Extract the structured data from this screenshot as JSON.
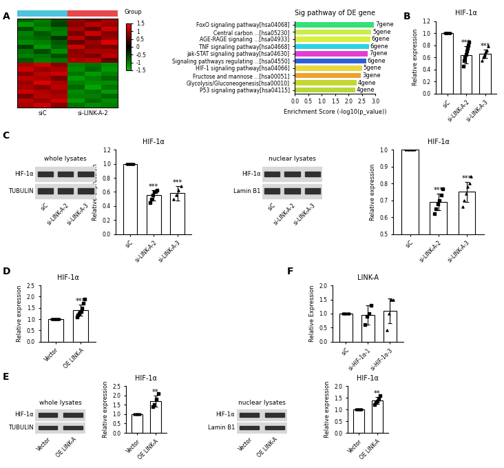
{
  "panel_labels": [
    "A",
    "B",
    "C",
    "D",
    "E",
    "F"
  ],
  "blots": [
    {
      "title": "whole lysates",
      "rows": [
        "HIF-1α",
        "TUBULIN"
      ],
      "lanes": [
        "siC",
        "si-LINK-A-2",
        "si-LINK-A-3"
      ]
    },
    {
      "title": "nuclear lysates",
      "rows": [
        "HIF-1α",
        "Lamin B1"
      ],
      "lanes": [
        "siC",
        "si-LINK-A-2",
        "si-LINK-A-3"
      ]
    },
    {
      "title": "whole lysates",
      "rows": [
        "HIF-1α",
        "TUBULIN"
      ],
      "lanes": [
        "Vector",
        "OE LINK-A"
      ]
    },
    {
      "title": "nuclear lysates",
      "rows": [
        "HIF-1α",
        "Lamin B1"
      ],
      "lanes": [
        "Vector",
        "OE LINK-A"
      ]
    }
  ],
  "chart_data": [
    {
      "type": "heatmap",
      "tick_labels": false,
      "group_title": "Group",
      "groups": [
        {
          "name": "siC",
          "color": "#4dc3dc",
          "columns": 3
        },
        {
          "name": "si-LINK-A-2",
          "color": "#e8484a",
          "columns": 3
        }
      ],
      "cells": [
        [
          -0.8,
          -1.0,
          -0.6,
          0.9,
          0.7,
          1.0
        ],
        [
          -1.2,
          -0.9,
          -0.5,
          0.8,
          1.1,
          0.9
        ],
        [
          -0.6,
          -1.1,
          -0.9,
          1.0,
          0.6,
          1.2
        ],
        [
          -1.0,
          -0.7,
          -1.0,
          0.7,
          1.2,
          0.8
        ],
        [
          -0.9,
          -0.8,
          -0.4,
          1.1,
          0.6,
          0.9
        ],
        [
          -1.1,
          -1.0,
          -0.7,
          0.6,
          0.9,
          1.3
        ],
        [
          -0.5,
          -1.2,
          -0.8,
          1.2,
          0.8,
          0.7
        ],
        [
          -0.9,
          -0.6,
          -1.1,
          0.8,
          1.0,
          1.0
        ],
        [
          -1.0,
          -0.9,
          -0.6,
          0.9,
          0.7,
          1.1
        ],
        [
          -0.7,
          -1.0,
          -0.9,
          1.0,
          1.1,
          0.6
        ],
        [
          1.0,
          1.2,
          0.8,
          -1.0,
          -0.9,
          -1.1
        ],
        [
          1.2,
          0.9,
          1.0,
          -1.1,
          -0.8,
          -1.2
        ],
        [
          0.8,
          1.1,
          1.2,
          -0.9,
          -1.2,
          -1.0
        ],
        [
          1.1,
          1.0,
          0.7,
          -1.2,
          -1.0,
          -0.8
        ],
        [
          0.9,
          1.3,
          1.0,
          -1.0,
          -1.1,
          -1.1
        ],
        [
          1.0,
          0.8,
          1.1,
          -0.8,
          -1.3,
          -0.9
        ],
        [
          1.2,
          1.0,
          0.9,
          -1.1,
          -0.9,
          -1.2
        ],
        [
          0.7,
          1.1,
          1.0,
          -1.0,
          -1.0,
          -0.8
        ],
        [
          1.1,
          0.9,
          1.2,
          -1.2,
          -0.8,
          -1.1
        ],
        [
          1.0,
          1.2,
          0.8,
          -0.9,
          -1.1,
          -1.0
        ]
      ],
      "colorbar_range": [
        -1.5,
        1.5
      ],
      "colorbar_ticks": [
        1.5,
        1,
        0.5,
        0,
        -0.5,
        -1,
        -1.5
      ]
    },
    {
      "type": "bar",
      "orientation": "horizontal",
      "title": "Sig pathway of DE gene",
      "x_label": "Enrichment Score (-log10(p_value))",
      "categories": [
        "FoxO signaling pathway[hsa04068]",
        "Central carbon ...[hsa05230]",
        "AGE-RAGE signaling ...[hsa04933]",
        "TNF signaling pathway[hsa04668]",
        "jak-STAT signaling pathway[hsa04630]",
        "Signaling pathways regulating ...[hsa04550]",
        "HIF-1 signaling pathway[hsa04066]",
        "Fructose and mannose ...[hsa00051]",
        "Glycolysis/Gluconeogenesis[hsa00010]",
        "P53 signaling pathway[hsa04115]"
      ],
      "values": [
        2.95,
        2.85,
        2.8,
        2.75,
        2.72,
        2.65,
        2.5,
        2.45,
        2.3,
        2.25
      ],
      "bar_labels": [
        "7gene",
        "5gene",
        "6gene",
        "6gene",
        "7gene",
        "6gene",
        "5gene",
        "3gene",
        "4gene",
        "4gene"
      ],
      "colors": [
        "#33e07a",
        "#c8ec4a",
        "#d8f040",
        "#28d4e8",
        "#e040d0",
        "#2f5fd8",
        "#e8d840",
        "#f0a030",
        "#c4d830",
        "#b8d838"
      ],
      "xlim": [
        0.0,
        3.0
      ],
      "xticks": [
        0.0,
        0.5,
        1.0,
        1.5,
        2.0,
        2.5,
        3.0
      ]
    },
    {
      "type": "bar",
      "title": "HIF-1α",
      "y_label": "Relative expression",
      "color": "#ffffff",
      "categories": [
        "siC",
        "si-LINK-A-2",
        "si-LINK-A-3"
      ],
      "values": [
        1.0,
        0.64,
        0.66
      ],
      "errors": [
        0.0,
        0.14,
        0.07
      ],
      "points": [
        [
          1.0,
          1.0,
          1.0,
          1.0,
          1.0,
          1.0,
          1.0,
          1.0
        ],
        [
          0.45,
          0.55,
          0.6,
          0.65,
          0.7,
          0.75,
          0.8,
          0.85
        ],
        [
          0.55,
          0.6,
          0.62,
          0.65,
          0.68,
          0.7,
          0.72,
          0.78
        ]
      ],
      "annotations": [
        null,
        "***",
        "***"
      ],
      "ylim": [
        0.0,
        1.2
      ],
      "yticks": [
        0.0,
        0.2,
        0.4,
        0.6,
        0.8,
        1.0,
        1.2
      ]
    },
    {
      "type": "bar",
      "title": "HIF-1α",
      "y_label": "Relative expression",
      "color": "#ffffff",
      "categories": [
        "siC",
        "si-LINK-A-2",
        "si-LINK-A-3"
      ],
      "values": [
        1.0,
        0.55,
        0.58
      ],
      "errors": [
        0.0,
        0.07,
        0.1
      ],
      "points": [
        [
          1.0,
          1.0,
          1.0,
          1.0,
          1.0,
          1.0
        ],
        [
          0.45,
          0.5,
          0.55,
          0.6,
          0.6,
          0.62
        ],
        [
          0.5,
          0.55,
          0.62,
          0.68
        ]
      ],
      "annotations": [
        null,
        "***",
        "***"
      ],
      "ylim": [
        0.0,
        1.2
      ],
      "yticks": [
        0.0,
        0.2,
        0.4,
        0.6,
        0.8,
        1.0,
        1.2
      ]
    },
    {
      "type": "bar",
      "title": "HIF-1α",
      "y_label": "Relative expression",
      "color": "#ffffff",
      "categories": [
        "siC",
        "si-LINK-A-2",
        "si-LINK-A-3"
      ],
      "values": [
        1.0,
        0.69,
        0.75
      ],
      "errors": [
        0.0,
        0.05,
        0.06
      ],
      "points": [
        [
          1.0,
          1.0,
          1.0,
          1.0,
          1.0,
          1.0
        ],
        [
          0.62,
          0.65,
          0.68,
          0.7,
          0.73,
          0.77
        ],
        [
          0.66,
          0.7,
          0.74,
          0.78,
          0.8,
          0.84
        ]
      ],
      "annotations": [
        null,
        "***",
        "***"
      ],
      "ylim": [
        0.5,
        1.0
      ],
      "yticks": [
        0.5,
        0.6,
        0.7,
        0.8,
        0.9,
        1.0
      ]
    },
    {
      "type": "bar",
      "title": "HIF-1α",
      "y_label": "Relative expression",
      "color": "#ffffff",
      "categories": [
        "Vector",
        "OE LINK-A"
      ],
      "values": [
        1.0,
        1.41
      ],
      "errors": [
        0.0,
        0.25
      ],
      "points": [
        [
          1.0,
          1.0,
          1.0,
          1.0,
          1.0,
          1.0,
          1.0,
          1.0
        ],
        [
          1.1,
          1.2,
          1.25,
          1.3,
          1.35,
          1.5,
          1.7,
          1.9
        ]
      ],
      "annotations": [
        null,
        "***"
      ],
      "ylim": [
        0.0,
        2.5
      ],
      "yticks": [
        0.0,
        0.5,
        1.0,
        1.5,
        2.0,
        2.5
      ]
    },
    {
      "type": "bar",
      "title": "HIF-1α",
      "y_label": "Relative expression",
      "color": "#ffffff",
      "categories": [
        "Vector",
        "OE LINK-A"
      ],
      "values": [
        1.0,
        1.7
      ],
      "errors": [
        0.0,
        0.3
      ],
      "points": [
        [
          1.0,
          1.0,
          1.0,
          1.0
        ],
        [
          1.4,
          1.5,
          1.8,
          2.1
        ]
      ],
      "annotations": [
        null,
        "**"
      ],
      "ylim": [
        0.0,
        2.5
      ],
      "yticks": [
        0.0,
        0.5,
        1.0,
        1.5,
        2.0,
        2.5
      ]
    },
    {
      "type": "bar",
      "title": "HIF-1α",
      "y_label": "Relative expression",
      "color": "#ffffff",
      "categories": [
        "Vector",
        "OE LINK-A"
      ],
      "values": [
        1.0,
        1.38
      ],
      "errors": [
        0.0,
        0.15
      ],
      "points": [
        [
          1.0,
          1.0,
          1.0,
          1.0,
          1.0
        ],
        [
          1.2,
          1.3,
          1.35,
          1.45,
          1.6
        ]
      ],
      "annotations": [
        null,
        "**"
      ],
      "ylim": [
        0.0,
        2.0
      ],
      "yticks": [
        0.0,
        0.5,
        1.0,
        1.5,
        2.0
      ]
    },
    {
      "type": "bar",
      "title": "LINK-A",
      "y_label": "Relative Expression",
      "color": "#ffffff",
      "categories": [
        "siC",
        "si-HIF-1α-1",
        "si-HIF-1α-3"
      ],
      "values": [
        1.0,
        0.95,
        1.1
      ],
      "errors": [
        0.0,
        0.35,
        0.45
      ],
      "points": [
        [
          1.0,
          1.0,
          1.0,
          1.0,
          1.0
        ],
        [
          0.6,
          0.9,
          1.0,
          1.3
        ],
        [
          0.4,
          1.0,
          1.5,
          1.5
        ]
      ],
      "ylim": [
        0.0,
        2.0
      ],
      "yticks": [
        0.0,
        0.5,
        1.0,
        1.5,
        2.0
      ]
    }
  ]
}
